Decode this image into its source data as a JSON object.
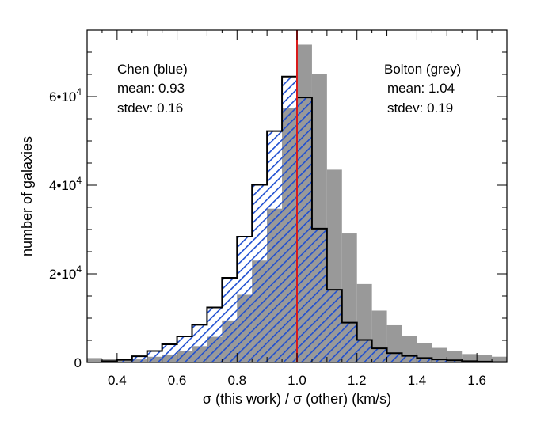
{
  "chart_data": {
    "type": "bar",
    "title": "",
    "xlabel": "σ (this work) / σ (other) (km/s)",
    "ylabel": "number of galaxies",
    "xlim": [
      0.3,
      1.7
    ],
    "ylim": [
      0,
      75000
    ],
    "xticks": [
      {
        "value": 0.4,
        "label": "0.4"
      },
      {
        "value": 0.6,
        "label": "0.6"
      },
      {
        "value": 0.8,
        "label": "0.8"
      },
      {
        "value": 1.0,
        "label": "1.0"
      },
      {
        "value": 1.2,
        "label": "1.2"
      },
      {
        "value": 1.4,
        "label": "1.4"
      },
      {
        "value": 1.6,
        "label": "1.6"
      }
    ],
    "yticks": [
      {
        "value": 0,
        "mant": "0",
        "exp": ""
      },
      {
        "value": 20000,
        "mant": "2•10",
        "exp": "4"
      },
      {
        "value": 40000,
        "mant": "4•10",
        "exp": "4"
      },
      {
        "value": 60000,
        "mant": "6•10",
        "exp": "4"
      }
    ],
    "bin_width": 0.05,
    "series": [
      {
        "name": "Bolton (grey)",
        "color": "#999999",
        "style": "filled histogram",
        "bins": [
          [
            0.3,
            1000
          ],
          [
            0.35,
            800
          ],
          [
            0.4,
            800
          ],
          [
            0.45,
            700
          ],
          [
            0.5,
            1300
          ],
          [
            0.55,
            1800
          ],
          [
            0.6,
            2600
          ],
          [
            0.65,
            3700
          ],
          [
            0.7,
            5800
          ],
          [
            0.75,
            9500
          ],
          [
            0.8,
            15300
          ],
          [
            0.85,
            23000
          ],
          [
            0.9,
            34700
          ],
          [
            0.95,
            57500
          ],
          [
            1.0,
            71700
          ],
          [
            1.05,
            65100
          ],
          [
            1.1,
            43500
          ],
          [
            1.15,
            29100
          ],
          [
            1.2,
            17700
          ],
          [
            1.25,
            11700
          ],
          [
            1.3,
            8400
          ],
          [
            1.35,
            5900
          ],
          [
            1.4,
            4300
          ],
          [
            1.45,
            3300
          ],
          [
            1.5,
            2600
          ],
          [
            1.55,
            1900
          ],
          [
            1.6,
            1700
          ],
          [
            1.65,
            1300
          ]
        ]
      },
      {
        "name": "Chen (blue)",
        "color": "#1f4fd1",
        "style": "hatched histogram",
        "bins": [
          [
            0.3,
            0
          ],
          [
            0.35,
            300
          ],
          [
            0.4,
            600
          ],
          [
            0.45,
            1400
          ],
          [
            0.5,
            2600
          ],
          [
            0.55,
            4100
          ],
          [
            0.6,
            5900
          ],
          [
            0.65,
            8500
          ],
          [
            0.7,
            12400
          ],
          [
            0.75,
            19100
          ],
          [
            0.8,
            28400
          ],
          [
            0.85,
            40100
          ],
          [
            0.9,
            52200
          ],
          [
            0.95,
            64500
          ],
          [
            1.0,
            59800
          ],
          [
            1.05,
            30200
          ],
          [
            1.1,
            16400
          ],
          [
            1.15,
            9000
          ],
          [
            1.2,
            5100
          ],
          [
            1.25,
            3200
          ],
          [
            1.3,
            2100
          ],
          [
            1.35,
            1500
          ],
          [
            1.4,
            1000
          ],
          [
            1.45,
            700
          ],
          [
            1.5,
            500
          ],
          [
            1.55,
            300
          ],
          [
            1.6,
            200
          ],
          [
            1.65,
            100
          ]
        ]
      }
    ],
    "reference_line": {
      "x": 1.0,
      "color": "#d91a1a"
    },
    "annotations": {
      "chen": {
        "line1": "Chen (blue)",
        "line2": "mean: 0.93",
        "line3": "stdev: 0.16"
      },
      "bolton": {
        "line1": "Bolton (grey)",
        "line2": "mean: 1.04",
        "line3": "stdev: 0.19"
      }
    }
  }
}
